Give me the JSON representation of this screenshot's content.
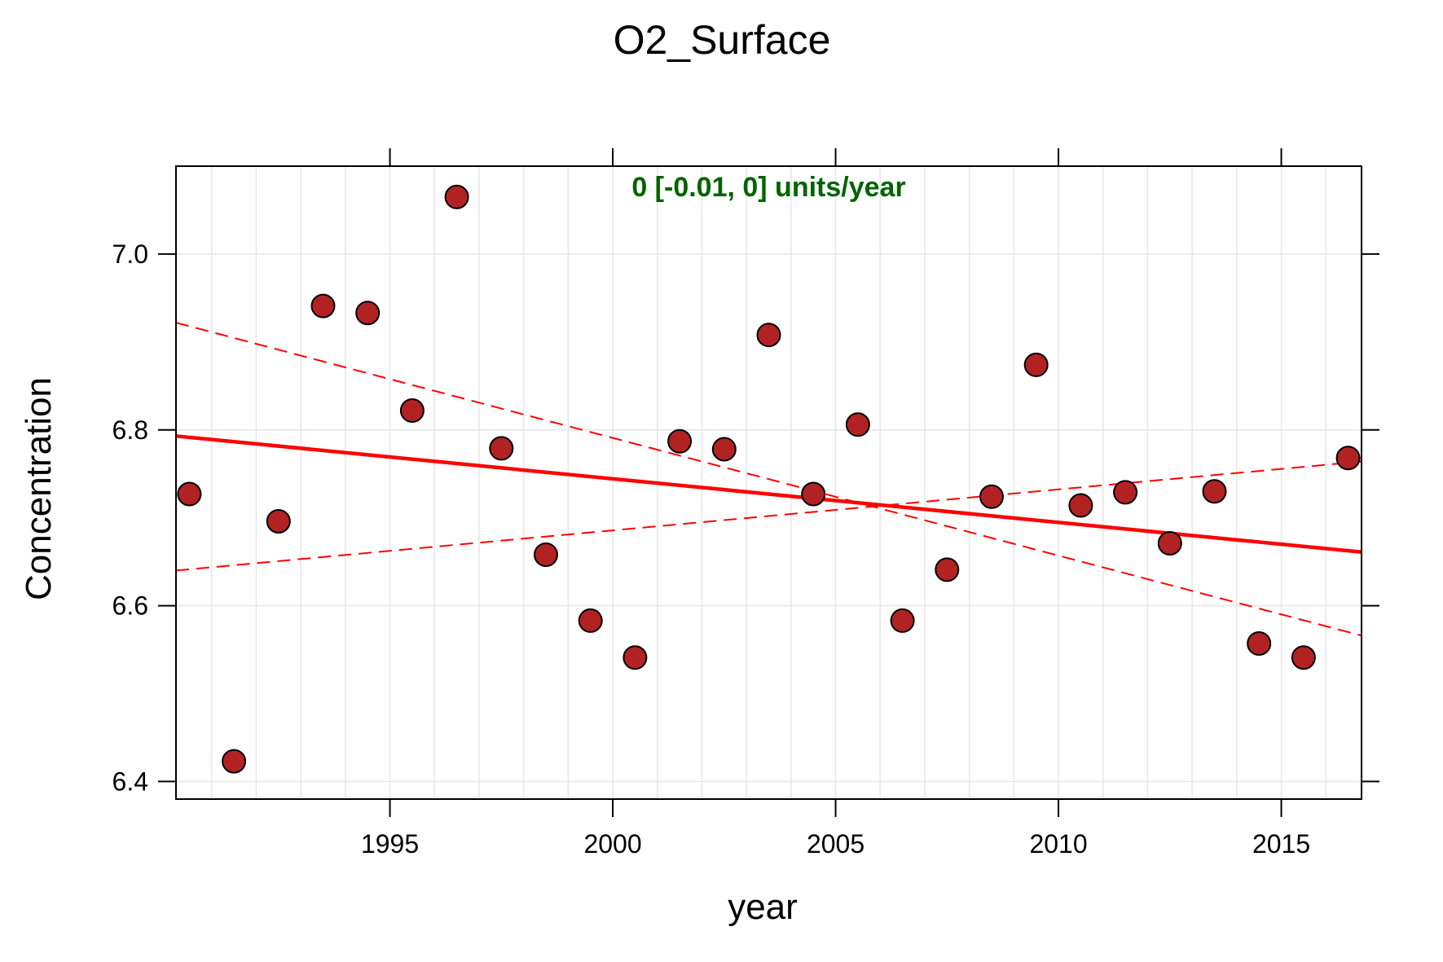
{
  "chart_data": {
    "type": "scatter",
    "title": "O2_Surface",
    "xlabel": "year",
    "ylabel": "Concentration",
    "annotation": "0 [-0.01, 0] units/year",
    "xlim": [
      1990.2,
      2016.8
    ],
    "ylim": [
      6.38,
      7.1
    ],
    "x_ticks": [
      1995,
      2000,
      2005,
      2010,
      2015
    ],
    "y_ticks": [
      6.4,
      6.6,
      6.8,
      7.0
    ],
    "y_tick_labels": [
      "6.4",
      "6.6",
      "6.8",
      "7.0"
    ],
    "x_minor_ticks": [
      1991,
      1992,
      1993,
      1994,
      1995,
      1996,
      1997,
      1998,
      1999,
      2000,
      2001,
      2002,
      2003,
      2004,
      2005,
      2006,
      2007,
      2008,
      2009,
      2010,
      2011,
      2012,
      2013,
      2014,
      2015,
      2016
    ],
    "grid": true,
    "colors": {
      "points_fill": "#b22222",
      "points_stroke": "#000000",
      "trend_line": "#ff0000",
      "annotation": "#006400",
      "grid": "#e6e6e6"
    },
    "series": [
      {
        "x": [
          1990.5,
          1991.5,
          1992.5,
          1993.5,
          1994.5,
          1995.5,
          1996.5,
          1997.5,
          1998.5,
          1999.5,
          2000.5,
          2001.5,
          2002.5,
          2003.5,
          2004.5,
          2005.5,
          2006.5,
          2007.5,
          2008.5,
          2009.5,
          2010.5,
          2011.5,
          2012.5,
          2013.5,
          2014.5,
          2015.5,
          2016.5
        ],
        "y": [
          6.727,
          6.423,
          6.696,
          6.941,
          6.933,
          6.822,
          7.065,
          6.779,
          6.658,
          6.583,
          6.541,
          6.787,
          6.778,
          6.908,
          6.727,
          6.806,
          6.583,
          6.641,
          6.724,
          6.874,
          6.714,
          6.729,
          6.671,
          6.73,
          6.557,
          6.541,
          6.768
        ]
      }
    ],
    "trend": {
      "line": [
        [
          1990.2,
          6.793
        ],
        [
          2016.8,
          6.661
        ]
      ],
      "lower": [
        [
          1990.2,
          6.922
        ],
        [
          2016.8,
          6.566
        ]
      ],
      "upper": [
        [
          1990.2,
          6.64
        ],
        [
          2016.8,
          6.764
        ]
      ]
    }
  }
}
